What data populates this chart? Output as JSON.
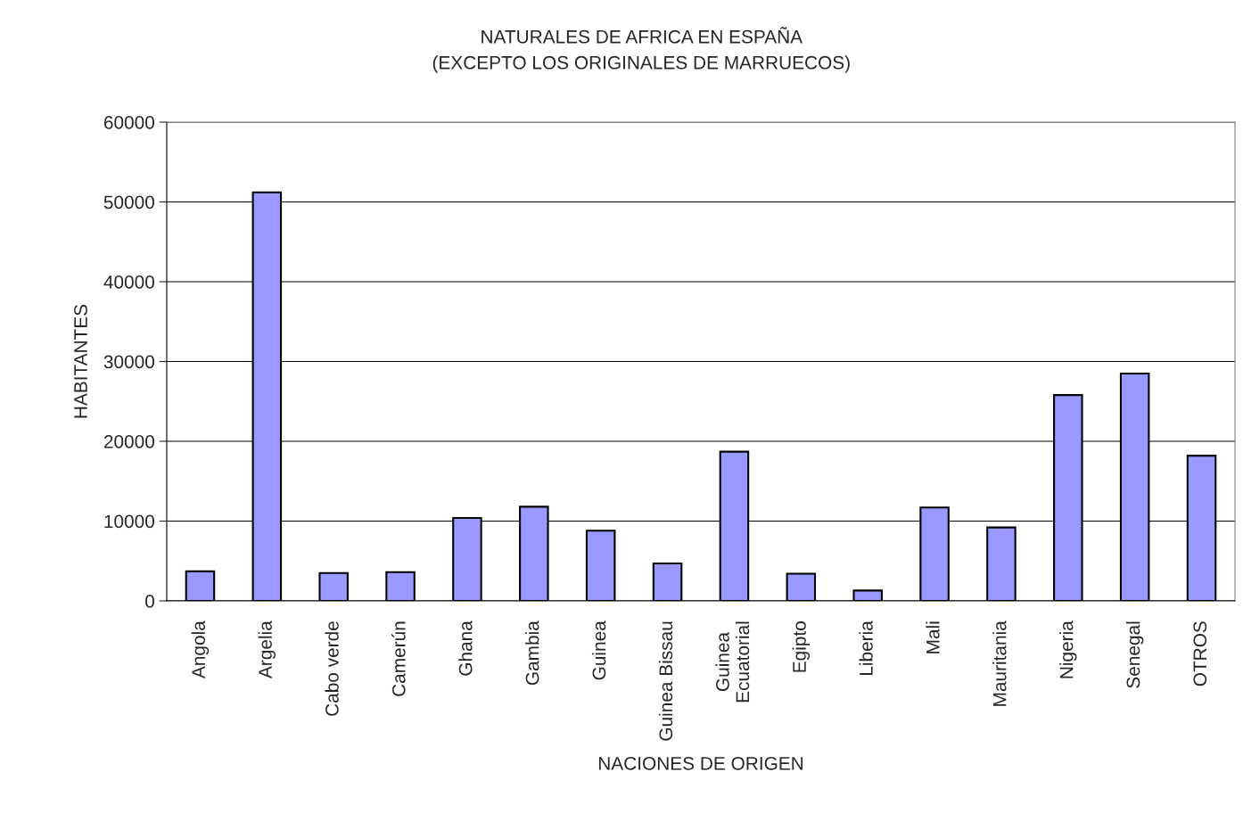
{
  "chart_data": {
    "type": "bar",
    "title": "NATURALES DE AFRICA EN ESPAÑA",
    "subtitle": "(EXCEPTO LOS ORIGINALES DE MARRUECOS)",
    "xlabel": "NACIONES DE ORIGEN",
    "ylabel": "HABITANTES",
    "categories": [
      "Angola",
      "Argelia",
      "Cabo verde",
      "Camerún",
      "Ghana",
      "Gambia",
      "Guinea",
      "Guinea Bissau",
      "Guinea\nEcuatorial",
      "Egipto",
      "Liberia",
      "Mali",
      "Mauritania",
      "Nigeria",
      "Senegal",
      "OTROS"
    ],
    "values": [
      3700,
      51200,
      3500,
      3600,
      10400,
      11800,
      8800,
      4700,
      18700,
      3400,
      1300,
      11700,
      9200,
      25800,
      28500,
      18200
    ],
    "color": "#9999ff",
    "ylim": [
      0,
      60000
    ],
    "yticks": [
      0,
      10000,
      20000,
      30000,
      40000,
      50000,
      60000
    ],
    "grid": "y",
    "legend": false
  }
}
